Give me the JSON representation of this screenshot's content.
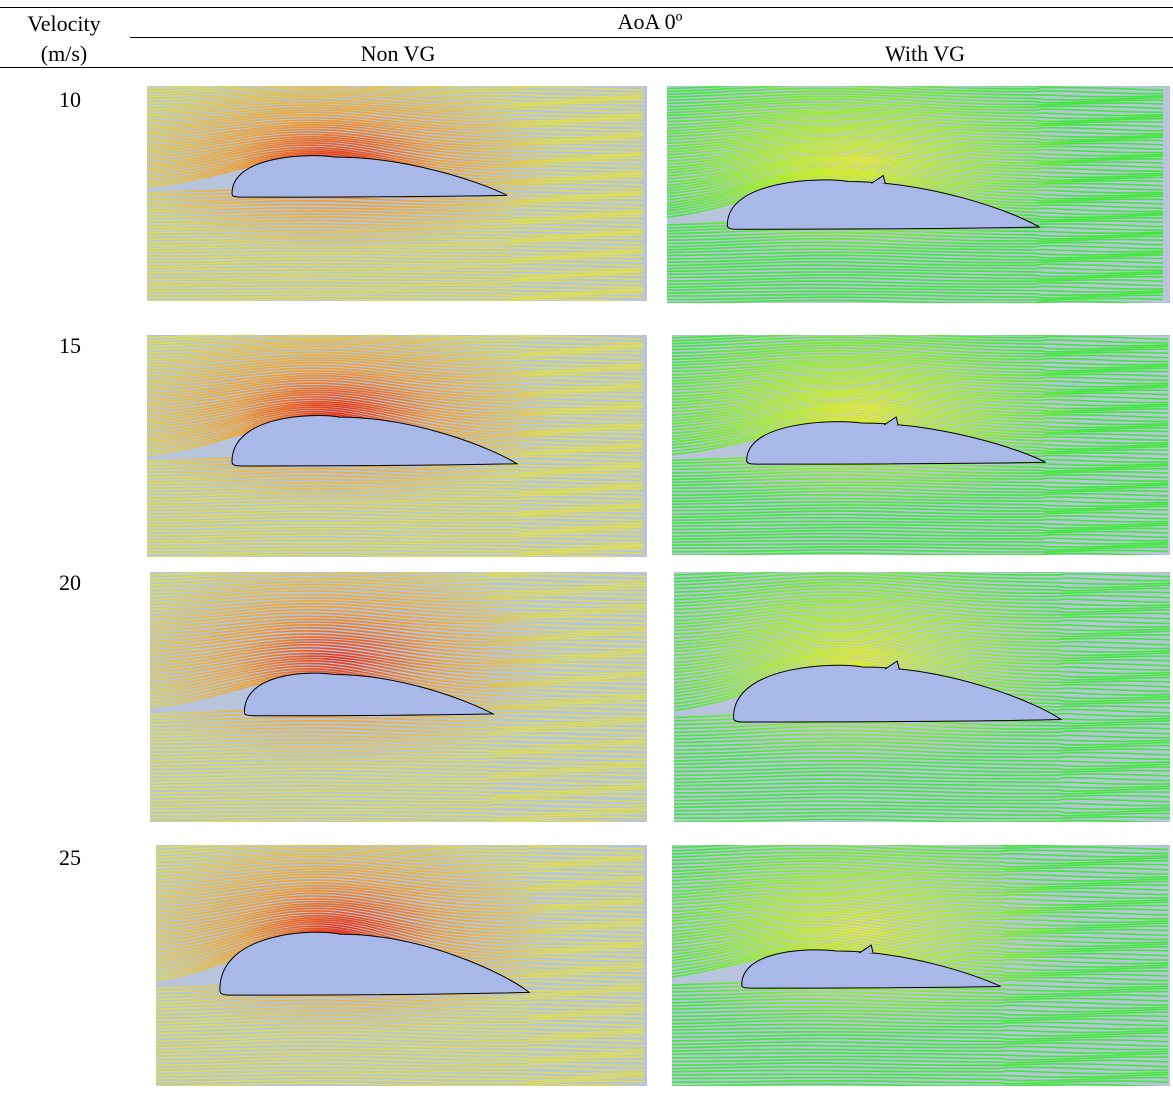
{
  "header": {
    "velocity": "Velocity",
    "unit": "(m/s)",
    "aoa": "AoA 0º",
    "non_vg": "Non VG",
    "with_vg": "With VG"
  },
  "rows": [
    {
      "velocity": 10
    },
    {
      "velocity": 15
    },
    {
      "velocity": 20
    },
    {
      "velocity": 25
    }
  ]
}
